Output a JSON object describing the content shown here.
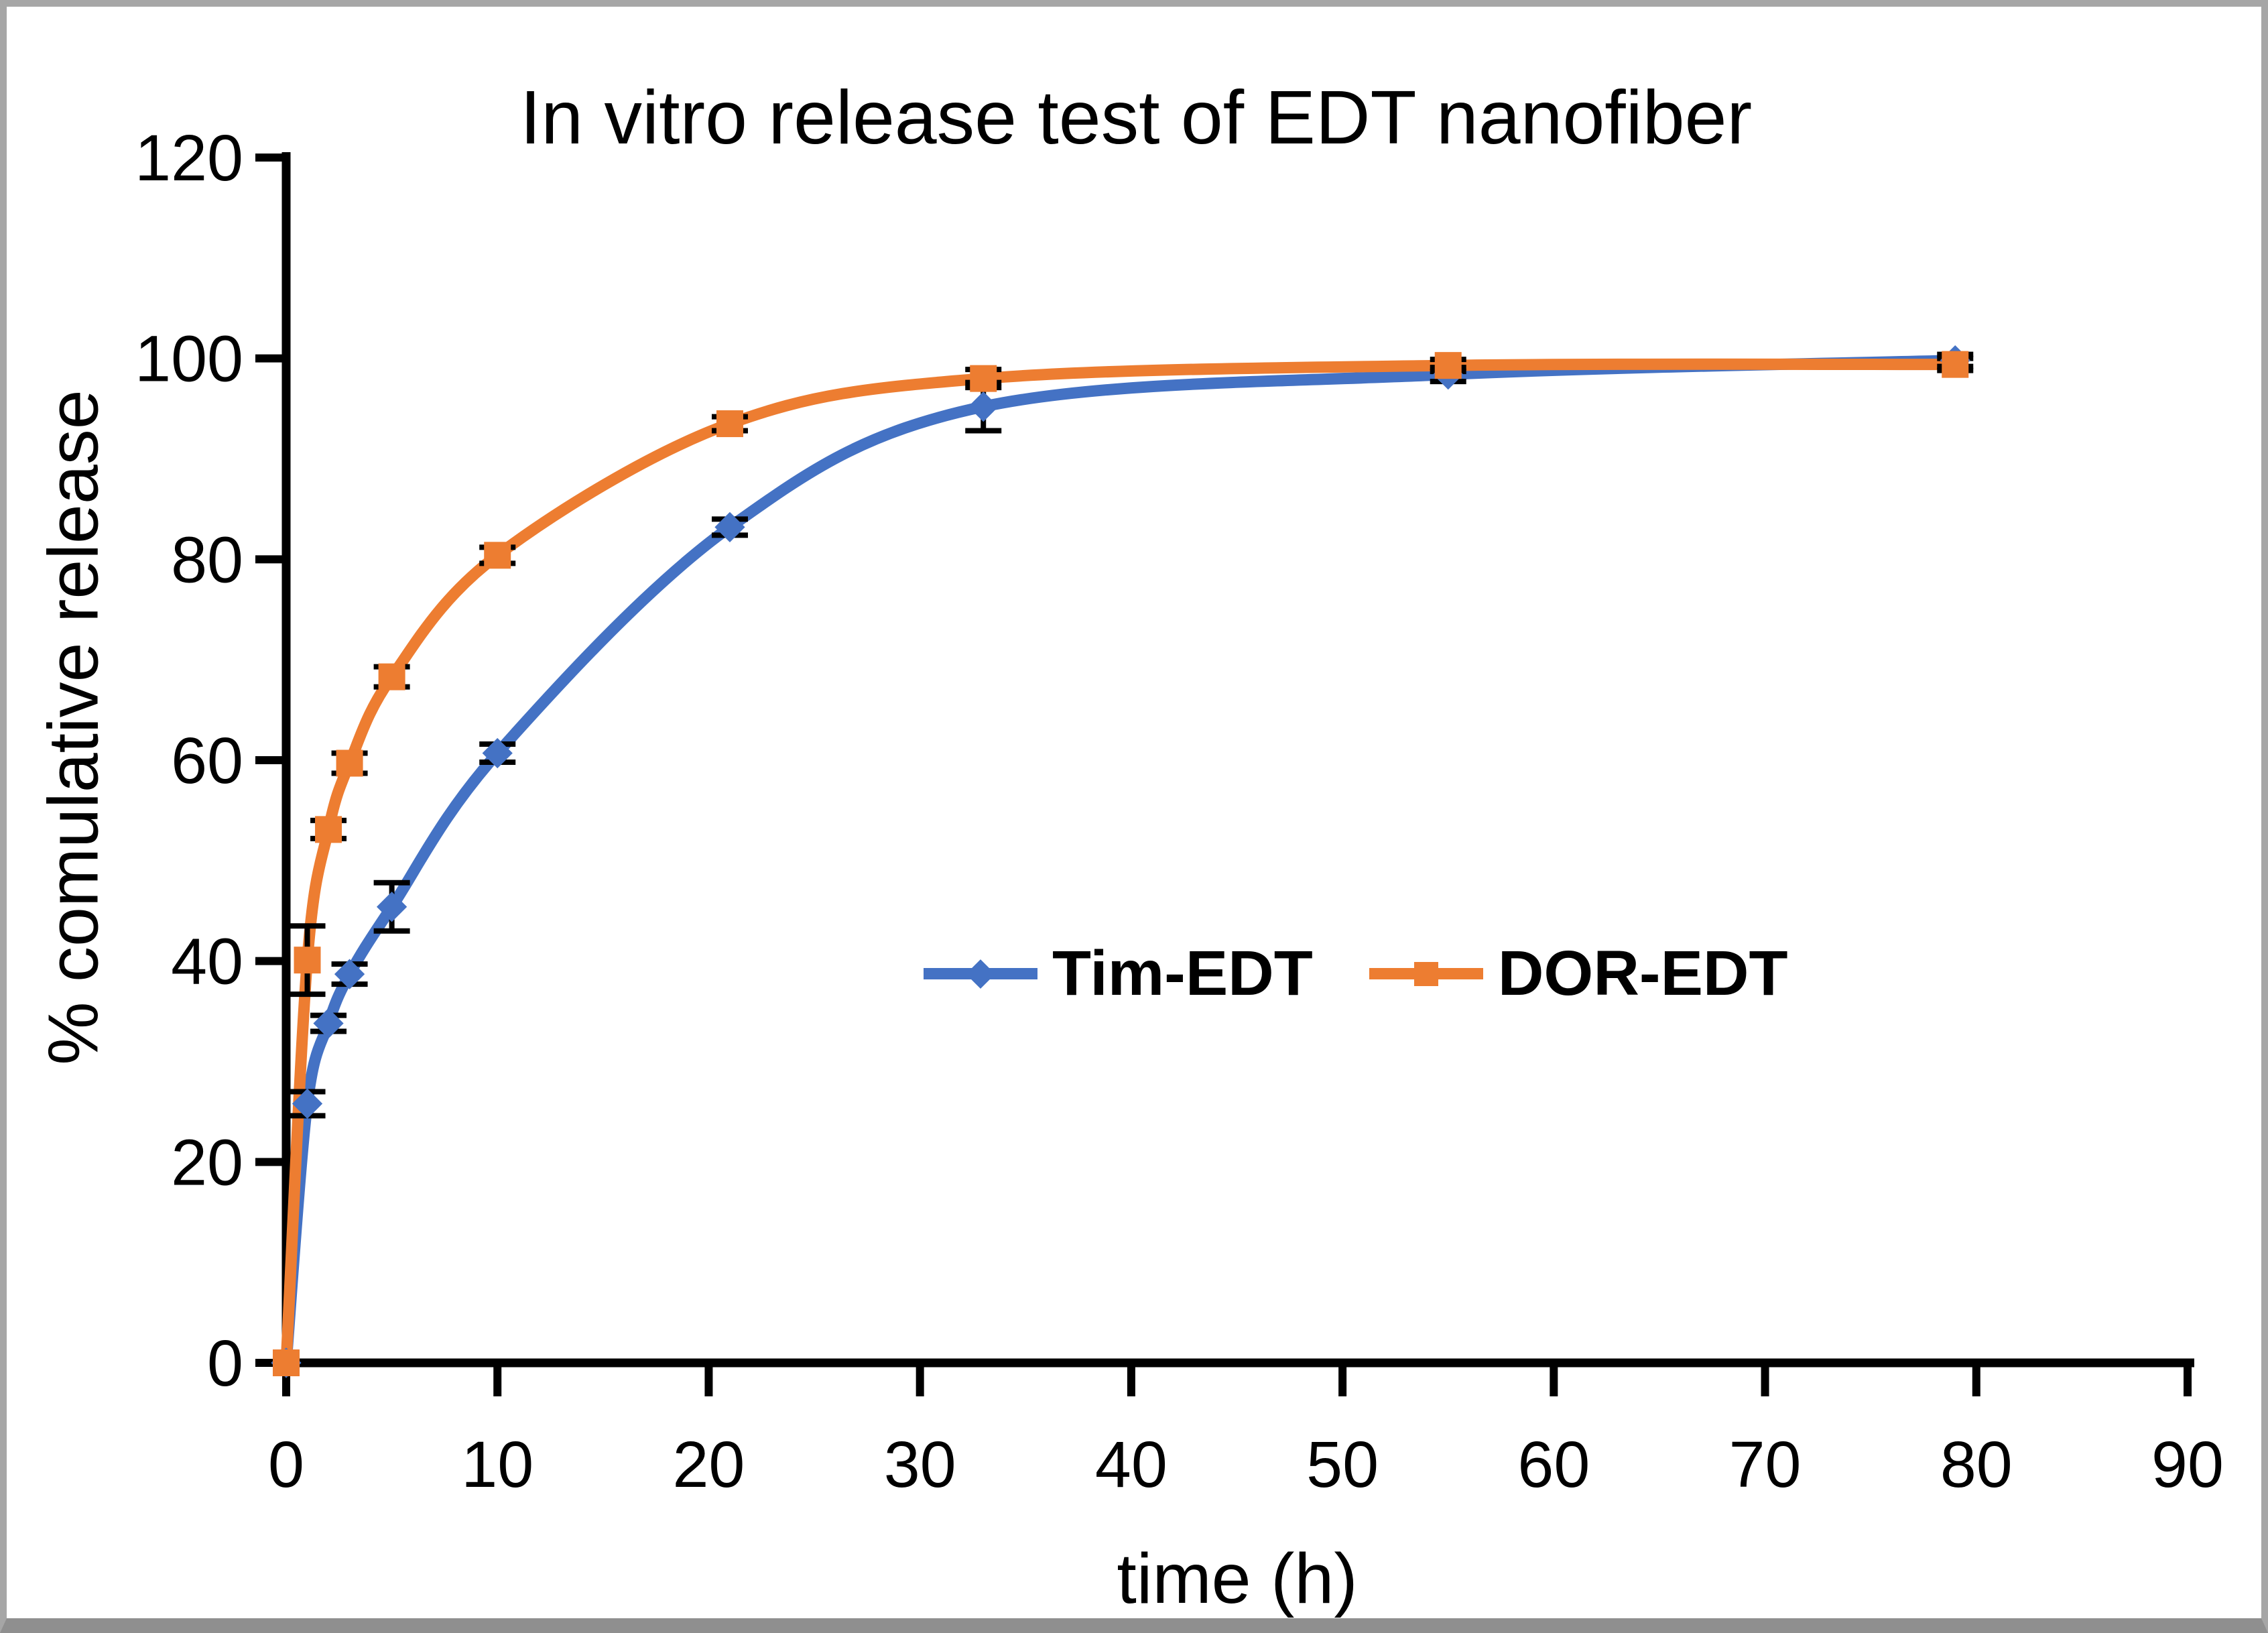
{
  "title": "In vitro release test of EDT nanofiber",
  "axes": {
    "x_label": "time (h)",
    "y_label": "% comulative release"
  },
  "colors": {
    "tim_edt": "#4472C4",
    "dor_edt": "#ED7D31",
    "axis": "#000000",
    "error_bar": "#000000",
    "frame": "#A6A6A6",
    "background": "#FFFFFF"
  },
  "chart_data": {
    "type": "line",
    "title": "In vitro release test of EDT nanofiber",
    "xlabel": "time (h)",
    "ylabel": "% comulative release",
    "xlim": [
      0,
      90
    ],
    "ylim": [
      0,
      120
    ],
    "x_ticks": [
      0,
      10,
      20,
      30,
      40,
      50,
      60,
      70,
      80,
      90
    ],
    "y_ticks": [
      0,
      20,
      40,
      60,
      80,
      100,
      120
    ],
    "grid": false,
    "smoothed": true,
    "legend_position": "center-middle",
    "x": [
      0,
      1,
      2,
      3,
      5,
      10,
      21,
      33,
      55,
      79
    ],
    "series": [
      {
        "name": "Tim-EDT",
        "color": "#4472C4",
        "marker": "diamond",
        "values": [
          0,
          25.8,
          33.8,
          38.7,
          45.4,
          60.7,
          83.2,
          95.2,
          98.4,
          99.8
        ],
        "errors": [
          0,
          1.2,
          0.8,
          1.0,
          2.4,
          0.9,
          0.8,
          2.4,
          0.7,
          0.6
        ]
      },
      {
        "name": "DOR-EDT",
        "color": "#ED7D31",
        "marker": "square",
        "values": [
          0,
          40.1,
          53.1,
          59.7,
          68.3,
          80.4,
          93.5,
          98.0,
          99.3,
          99.4
        ],
        "errors": [
          0,
          3.4,
          0.9,
          1.0,
          1.0,
          0.8,
          0.7,
          0.9,
          0.6,
          0.6
        ]
      }
    ]
  }
}
